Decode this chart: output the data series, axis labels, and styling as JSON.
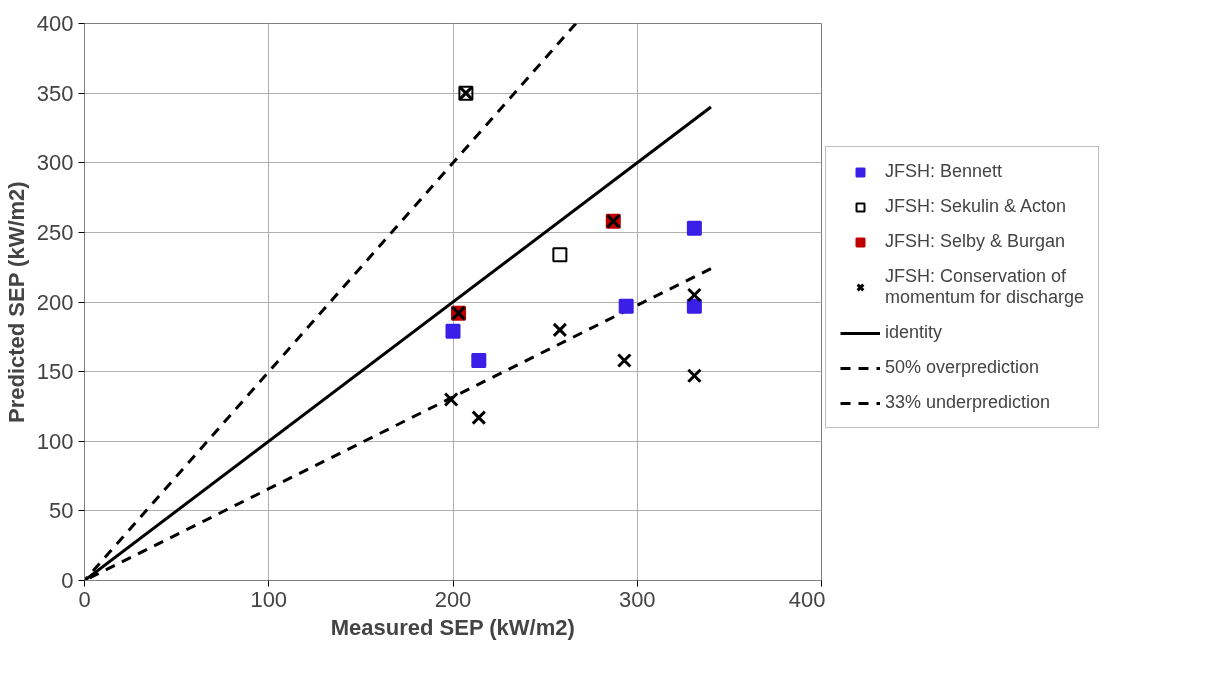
{
  "chart_data": {
    "type": "scatter",
    "xlabel": "Measured SEP (kW/m2)",
    "ylabel": "Predicted SEP (kW/m2)",
    "xlim": [
      0,
      400
    ],
    "xticks": [
      0,
      100,
      200,
      300,
      400
    ],
    "ylim": [
      0,
      400
    ],
    "yticks": [
      0,
      50,
      100,
      150,
      200,
      250,
      300,
      350,
      400
    ],
    "grid": true,
    "legend": "right",
    "series": [
      {
        "name": "JFSH: Bennett",
        "marker": "square",
        "color": "#3a1fe6",
        "x": [
          200,
          214,
          294,
          331,
          331
        ],
        "values": [
          179,
          158,
          197,
          253,
          197
        ]
      },
      {
        "name": "JFSH: Sekulin & Acton",
        "marker": "square_open",
        "color": "#000000",
        "x": [
          207,
          258
        ],
        "values": [
          350,
          234
        ]
      },
      {
        "name": "JFSH: Selby & Burgan",
        "marker": "square",
        "color": "#c00000",
        "x": [
          203,
          287
        ],
        "values": [
          192,
          258
        ]
      },
      {
        "name": "JFSH: Conservation of momentum for discharge",
        "marker": "cross",
        "color": "#000000",
        "x": [
          207,
          203,
          287,
          199,
          214,
          258,
          293,
          331,
          331
        ],
        "values": [
          350,
          192,
          258,
          130,
          117,
          180,
          158,
          147,
          205
        ]
      },
      {
        "name": "identity",
        "type": "line",
        "line_style": "solid",
        "color": "#000000",
        "x": [
          0,
          340
        ],
        "values": [
          0,
          340
        ]
      },
      {
        "name": "50% overprediction",
        "type": "line",
        "line_style": "dashed",
        "color": "#000000",
        "x": [
          0,
          266.7
        ],
        "values": [
          0,
          400
        ]
      },
      {
        "name": "33% underprediction",
        "type": "line",
        "line_style": "dashed",
        "color": "#000000",
        "x": [
          0,
          340
        ],
        "values": [
          0,
          224
        ]
      }
    ]
  }
}
